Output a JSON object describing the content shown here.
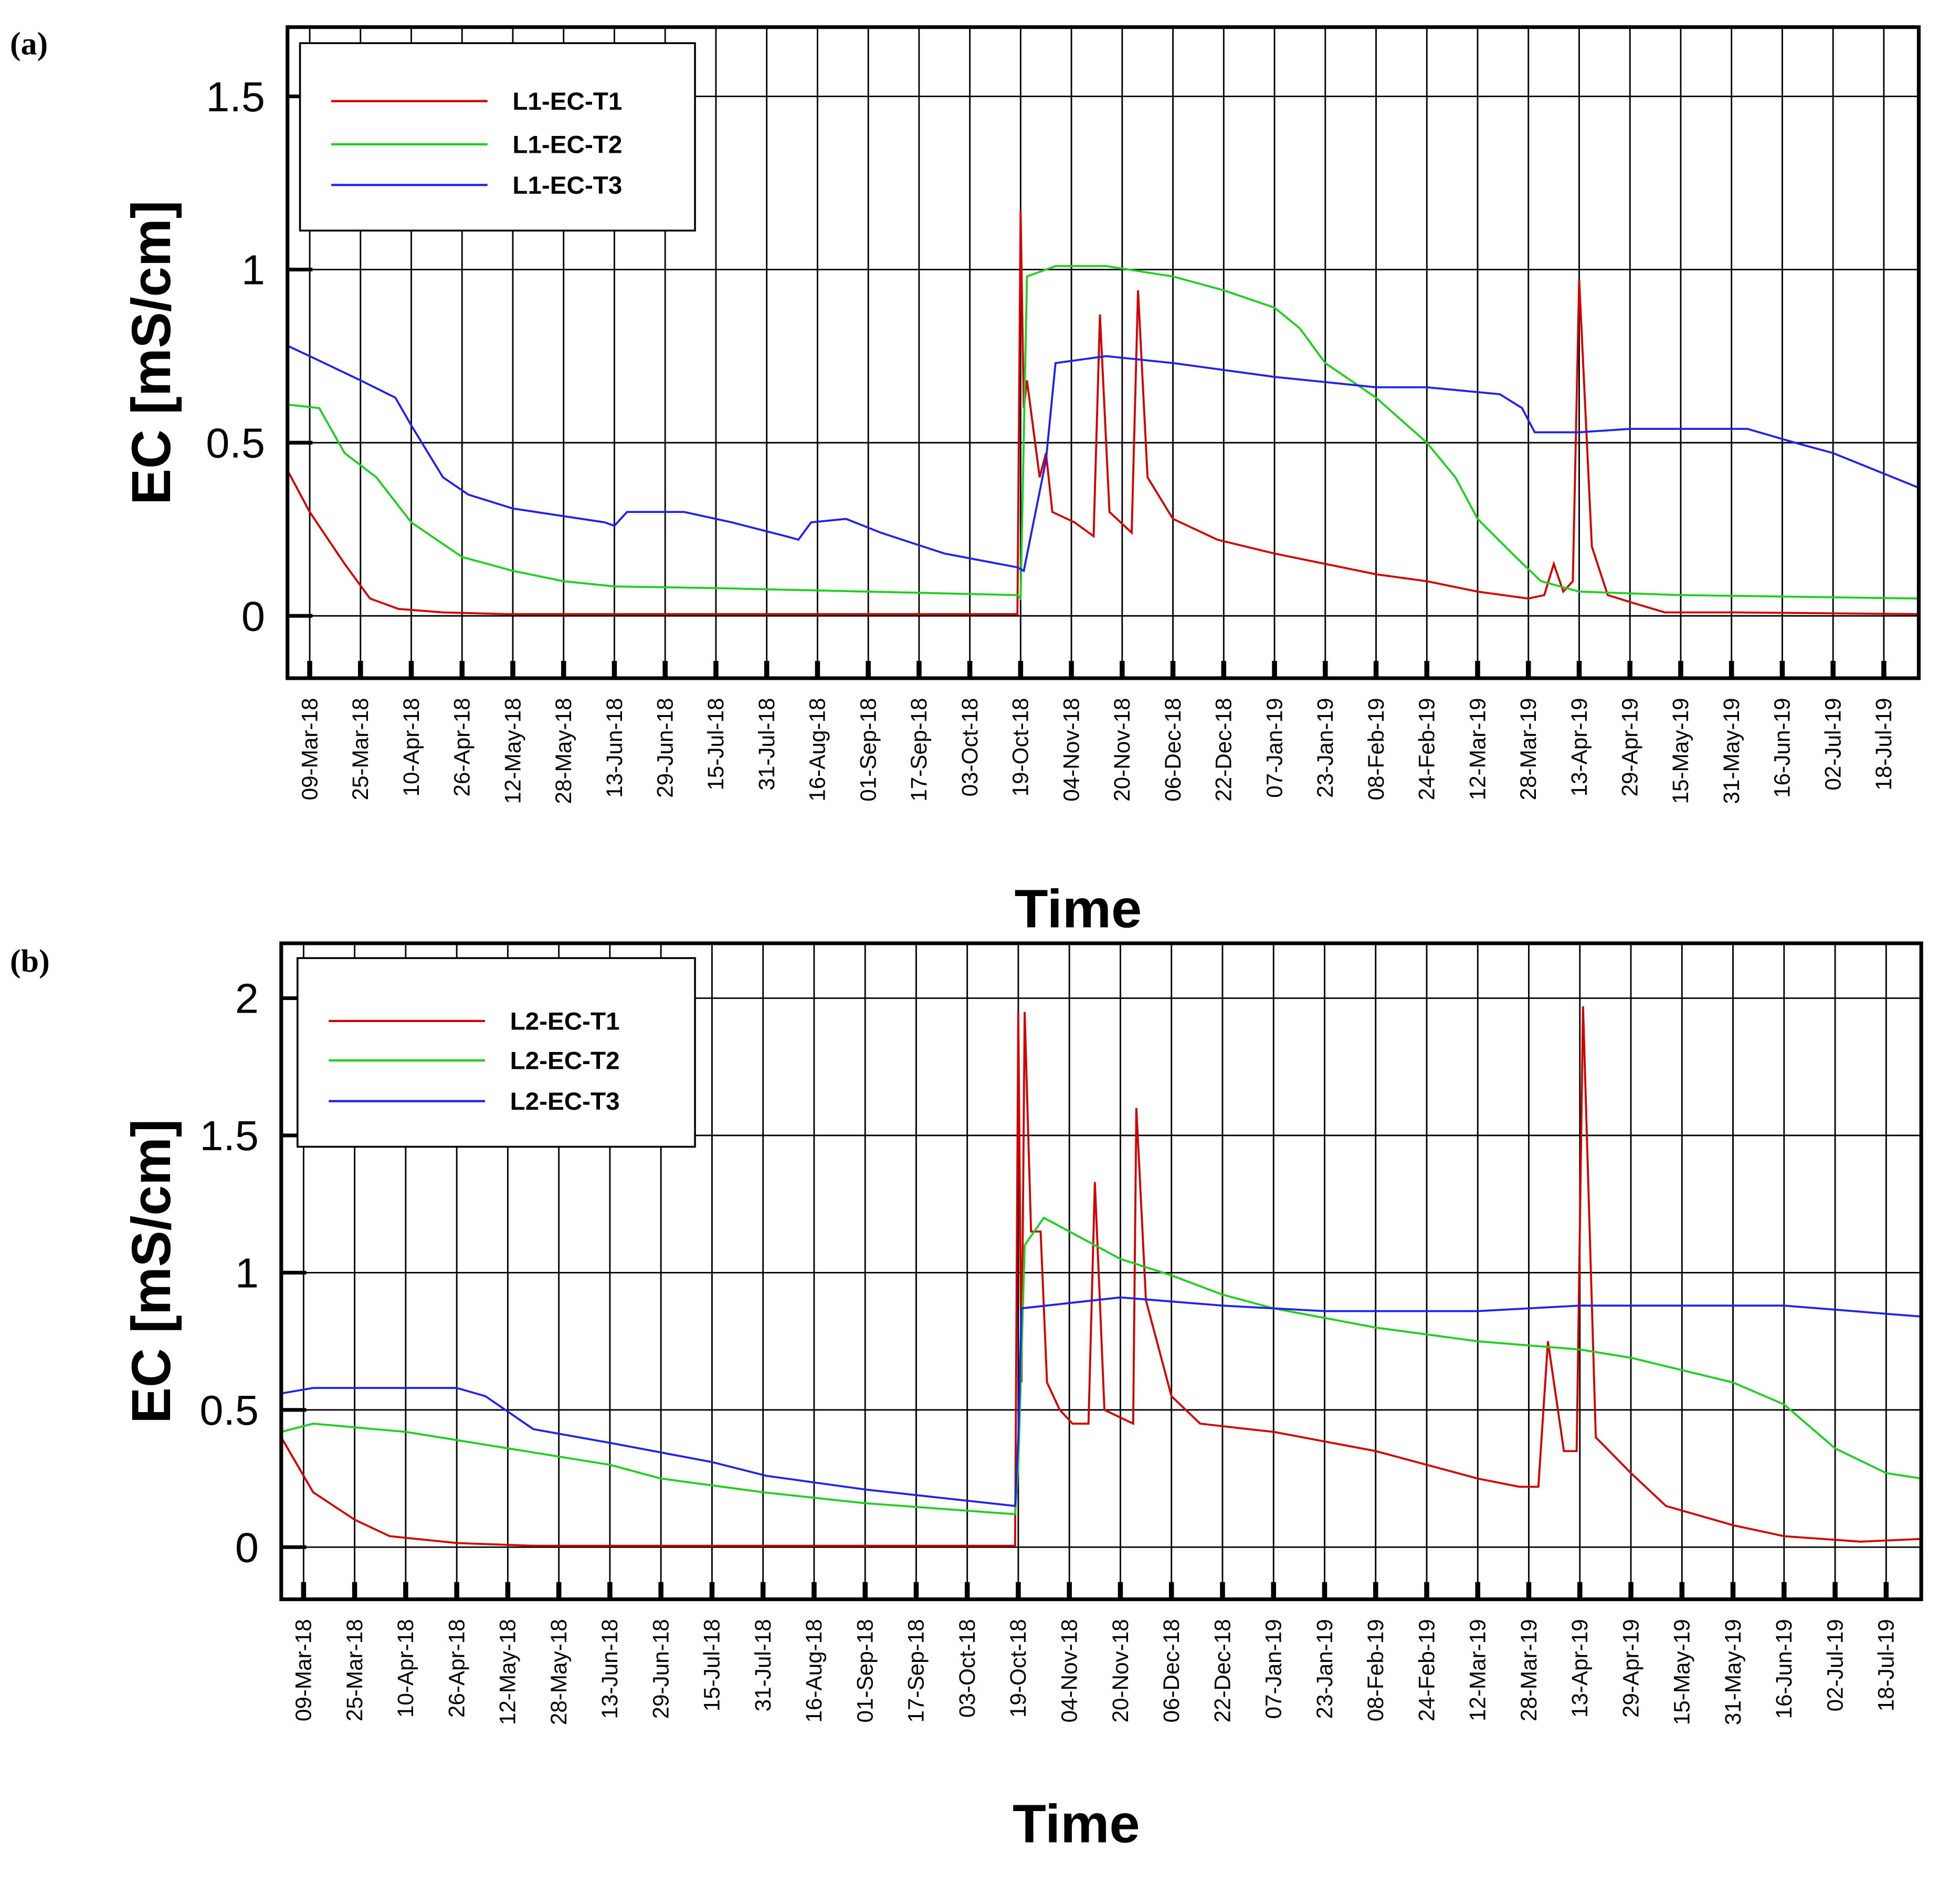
{
  "chart_data": [
    {
      "type": "line",
      "label": "(a)",
      "xlabel": "Time",
      "ylabel": "EC [mS/cm]",
      "xlim": [
        "2018-03-02",
        "2019-07-29"
      ],
      "ylim": [
        -0.18,
        1.7
      ],
      "yticks": [
        0,
        0.5,
        1,
        1.5
      ],
      "grid": true,
      "legend": "upper left",
      "xticks": [
        {
          "value": "2018-03-09",
          "label": "09-Mar-18"
        },
        {
          "value": "2018-03-25",
          "label": "25-Mar-18"
        },
        {
          "value": "2018-04-10",
          "label": "10-Apr-18"
        },
        {
          "value": "2018-04-26",
          "label": "26-Apr-18"
        },
        {
          "value": "2018-05-12",
          "label": "12-May-18"
        },
        {
          "value": "2018-05-28",
          "label": "28-May-18"
        },
        {
          "value": "2018-06-13",
          "label": "13-Jun-18"
        },
        {
          "value": "2018-06-29",
          "label": "29-Jun-18"
        },
        {
          "value": "2018-07-15",
          "label": "15-Jul-18"
        },
        {
          "value": "2018-07-31",
          "label": "31-Jul-18"
        },
        {
          "value": "2018-08-16",
          "label": "16-Aug-18"
        },
        {
          "value": "2018-09-01",
          "label": "01-Sep-18"
        },
        {
          "value": "2018-09-17",
          "label": "17-Sep-18"
        },
        {
          "value": "2018-10-03",
          "label": "03-Oct-18"
        },
        {
          "value": "2018-10-19",
          "label": "19-Oct-18"
        },
        {
          "value": "2018-11-04",
          "label": "04-Nov-18"
        },
        {
          "value": "2018-11-20",
          "label": "20-Nov-18"
        },
        {
          "value": "2018-12-06",
          "label": "06-Dec-18"
        },
        {
          "value": "2018-12-22",
          "label": "22-Dec-18"
        },
        {
          "value": "2019-01-07",
          "label": "07-Jan-19"
        },
        {
          "value": "2019-01-23",
          "label": "23-Jan-19"
        },
        {
          "value": "2019-02-08",
          "label": "08-Feb-19"
        },
        {
          "value": "2019-02-24",
          "label": "24-Feb-19"
        },
        {
          "value": "2019-03-12",
          "label": "12-Mar-19"
        },
        {
          "value": "2019-03-28",
          "label": "28-Mar-19"
        },
        {
          "value": "2019-04-13",
          "label": "13-Apr-19"
        },
        {
          "value": "2019-04-29",
          "label": "29-Apr-19"
        },
        {
          "value": "2019-05-15",
          "label": "15-May-19"
        },
        {
          "value": "2019-05-31",
          "label": "31-May-19"
        },
        {
          "value": "2019-06-16",
          "label": "16-Jun-19"
        },
        {
          "value": "2019-07-02",
          "label": "02-Jul-19"
        },
        {
          "value": "2019-07-18",
          "label": "18-Jul-19"
        }
      ],
      "series": [
        {
          "name": "L1-EC-T1",
          "color": "#d40000",
          "x": [
            "2018-03-02",
            "2018-03-09",
            "2018-03-20",
            "2018-03-28",
            "2018-04-06",
            "2018-04-20",
            "2018-05-10",
            "2018-10-18",
            "2018-10-19",
            "2018-10-20",
            "2018-10-21",
            "2018-10-25",
            "2018-10-27",
            "2018-10-29",
            "2018-11-05",
            "2018-11-11",
            "2018-11-13",
            "2018-11-16",
            "2018-11-23",
            "2018-11-25",
            "2018-11-28",
            "2018-12-06",
            "2018-12-20",
            "2019-01-07",
            "2019-01-23",
            "2019-02-08",
            "2019-02-24",
            "2019-03-12",
            "2019-03-28",
            "2019-04-02",
            "2019-04-05",
            "2019-04-08",
            "2019-04-11",
            "2019-04-13",
            "2019-04-17",
            "2019-04-22",
            "2019-04-29",
            "2019-05-10",
            "2019-05-31",
            "2019-07-29"
          ],
          "values": [
            0.42,
            0.3,
            0.15,
            0.05,
            0.02,
            0.01,
            0.005,
            0.005,
            1.17,
            0.6,
            0.68,
            0.4,
            0.47,
            0.3,
            0.27,
            0.23,
            0.87,
            0.3,
            0.24,
            0.94,
            0.4,
            0.28,
            0.22,
            0.18,
            0.15,
            0.12,
            0.1,
            0.07,
            0.05,
            0.06,
            0.15,
            0.07,
            0.1,
            0.97,
            0.2,
            0.06,
            0.04,
            0.01,
            0.01,
            0.005
          ]
        },
        {
          "name": "L1-EC-T2",
          "color": "#1ed01e",
          "x": [
            "2018-03-02",
            "2018-03-12",
            "2018-03-20",
            "2018-03-30",
            "2018-04-10",
            "2018-04-26",
            "2018-05-12",
            "2018-05-28",
            "2018-06-13",
            "2018-07-15",
            "2018-09-01",
            "2018-10-18",
            "2018-10-19",
            "2018-10-21",
            "2018-10-30",
            "2018-11-15",
            "2018-12-06",
            "2018-12-22",
            "2019-01-07",
            "2019-01-15",
            "2019-01-23",
            "2019-02-08",
            "2019-02-24",
            "2019-03-05",
            "2019-03-12",
            "2019-03-24",
            "2019-04-01",
            "2019-04-13",
            "2019-05-15",
            "2019-07-29"
          ],
          "values": [
            0.61,
            0.6,
            0.47,
            0.4,
            0.27,
            0.17,
            0.13,
            0.1,
            0.085,
            0.08,
            0.07,
            0.06,
            0.05,
            0.98,
            1.01,
            1.01,
            0.98,
            0.94,
            0.89,
            0.83,
            0.73,
            0.63,
            0.5,
            0.4,
            0.28,
            0.17,
            0.1,
            0.07,
            0.06,
            0.05
          ]
        },
        {
          "name": "L1-EC-T3",
          "color": "#2020f0",
          "x": [
            "2018-03-02",
            "2018-03-09",
            "2018-03-25",
            "2018-04-05",
            "2018-04-10",
            "2018-04-20",
            "2018-04-28",
            "2018-05-12",
            "2018-06-10",
            "2018-06-13",
            "2018-06-17",
            "2018-07-05",
            "2018-07-20",
            "2018-08-06",
            "2018-08-10",
            "2018-08-14",
            "2018-08-25",
            "2018-09-05",
            "2018-09-25",
            "2018-10-18",
            "2018-10-20",
            "2018-10-27",
            "2018-10-30",
            "2018-11-15",
            "2018-12-06",
            "2019-01-07",
            "2019-02-08",
            "2019-02-24",
            "2019-03-19",
            "2019-03-26",
            "2019-03-30",
            "2019-04-13",
            "2019-04-29",
            "2019-06-05",
            "2019-06-20",
            "2019-07-02",
            "2019-07-29"
          ],
          "values": [
            0.78,
            0.75,
            0.68,
            0.63,
            0.55,
            0.4,
            0.35,
            0.31,
            0.27,
            0.26,
            0.3,
            0.3,
            0.27,
            0.23,
            0.22,
            0.27,
            0.28,
            0.24,
            0.18,
            0.14,
            0.13,
            0.45,
            0.73,
            0.75,
            0.73,
            0.69,
            0.66,
            0.66,
            0.64,
            0.6,
            0.53,
            0.53,
            0.54,
            0.54,
            0.5,
            0.47,
            0.37
          ]
        }
      ]
    },
    {
      "type": "line",
      "label": "(b)",
      "xlabel": "Time",
      "ylabel": "EC [mS/cm]",
      "xlim": [
        "2018-03-02",
        "2019-07-29"
      ],
      "ylim": [
        -0.19,
        2.2
      ],
      "yticks": [
        0,
        0.5,
        1,
        1.5,
        2
      ],
      "grid": true,
      "legend": "upper left",
      "xticks": [
        {
          "value": "2018-03-09",
          "label": "09-Mar-18"
        },
        {
          "value": "2018-03-25",
          "label": "25-Mar-18"
        },
        {
          "value": "2018-04-10",
          "label": "10-Apr-18"
        },
        {
          "value": "2018-04-26",
          "label": "26-Apr-18"
        },
        {
          "value": "2018-05-12",
          "label": "12-May-18"
        },
        {
          "value": "2018-05-28",
          "label": "28-May-18"
        },
        {
          "value": "2018-06-13",
          "label": "13-Jun-18"
        },
        {
          "value": "2018-06-29",
          "label": "29-Jun-18"
        },
        {
          "value": "2018-07-15",
          "label": "15-Jul-18"
        },
        {
          "value": "2018-07-31",
          "label": "31-Jul-18"
        },
        {
          "value": "2018-08-16",
          "label": "16-Aug-18"
        },
        {
          "value": "2018-09-01",
          "label": "01-Sep-18"
        },
        {
          "value": "2018-09-17",
          "label": "17-Sep-18"
        },
        {
          "value": "2018-10-03",
          "label": "03-Oct-18"
        },
        {
          "value": "2018-10-19",
          "label": "19-Oct-18"
        },
        {
          "value": "2018-11-04",
          "label": "04-Nov-18"
        },
        {
          "value": "2018-11-20",
          "label": "20-Nov-18"
        },
        {
          "value": "2018-12-06",
          "label": "06-Dec-18"
        },
        {
          "value": "2018-12-22",
          "label": "22-Dec-18"
        },
        {
          "value": "2019-01-07",
          "label": "07-Jan-19"
        },
        {
          "value": "2019-01-23",
          "label": "23-Jan-19"
        },
        {
          "value": "2019-02-08",
          "label": "08-Feb-19"
        },
        {
          "value": "2019-02-24",
          "label": "24-Feb-19"
        },
        {
          "value": "2019-03-12",
          "label": "12-Mar-19"
        },
        {
          "value": "2019-03-28",
          "label": "28-Mar-19"
        },
        {
          "value": "2019-04-13",
          "label": "13-Apr-19"
        },
        {
          "value": "2019-04-29",
          "label": "29-Apr-19"
        },
        {
          "value": "2019-05-15",
          "label": "15-May-19"
        },
        {
          "value": "2019-05-31",
          "label": "31-May-19"
        },
        {
          "value": "2019-06-16",
          "label": "16-Jun-19"
        },
        {
          "value": "2019-07-02",
          "label": "02-Jul-19"
        },
        {
          "value": "2019-07-18",
          "label": "18-Jul-19"
        }
      ],
      "series": [
        {
          "name": "L2-EC-T1",
          "color": "#d40000",
          "x": [
            "2018-03-02",
            "2018-03-12",
            "2018-03-25",
            "2018-04-05",
            "2018-04-26",
            "2018-05-20",
            "2018-10-18",
            "2018-10-19",
            "2018-10-20",
            "2018-10-21",
            "2018-10-23",
            "2018-10-26",
            "2018-10-28",
            "2018-11-01",
            "2018-11-05",
            "2018-11-10",
            "2018-11-12",
            "2018-11-15",
            "2018-11-24",
            "2018-11-25",
            "2018-11-28",
            "2018-12-06",
            "2018-12-15",
            "2018-12-30",
            "2019-01-07",
            "2019-02-08",
            "2019-03-12",
            "2019-03-25",
            "2019-03-31",
            "2019-04-03",
            "2019-04-08",
            "2019-04-12",
            "2019-04-14",
            "2019-04-18",
            "2019-04-29",
            "2019-05-10",
            "2019-05-31",
            "2019-06-16",
            "2019-07-10",
            "2019-07-29"
          ],
          "values": [
            0.4,
            0.2,
            0.1,
            0.04,
            0.015,
            0.005,
            0.005,
            1.95,
            0.6,
            1.95,
            1.15,
            1.15,
            0.6,
            0.5,
            0.45,
            0.45,
            1.33,
            0.5,
            0.45,
            1.6,
            0.9,
            0.55,
            0.45,
            0.43,
            0.42,
            0.35,
            0.25,
            0.22,
            0.22,
            0.75,
            0.35,
            0.35,
            1.97,
            0.4,
            0.27,
            0.15,
            0.08,
            0.04,
            0.02,
            0.03
          ]
        },
        {
          "name": "L2-EC-T2",
          "color": "#1ed01e",
          "x": [
            "2018-03-02",
            "2018-03-12",
            "2018-04-10",
            "2018-05-12",
            "2018-06-13",
            "2018-06-29",
            "2018-07-31",
            "2018-09-01",
            "2018-10-18",
            "2018-10-19",
            "2018-10-21",
            "2018-10-27",
            "2018-11-04",
            "2018-11-20",
            "2018-12-06",
            "2018-12-22",
            "2019-01-07",
            "2019-02-08",
            "2019-03-12",
            "2019-04-13",
            "2019-04-29",
            "2019-05-31",
            "2019-06-16",
            "2019-07-02",
            "2019-07-18",
            "2019-07-29"
          ],
          "values": [
            0.42,
            0.45,
            0.42,
            0.36,
            0.3,
            0.25,
            0.2,
            0.16,
            0.12,
            0.3,
            1.1,
            1.2,
            1.15,
            1.05,
            0.99,
            0.92,
            0.87,
            0.8,
            0.75,
            0.72,
            0.69,
            0.6,
            0.52,
            0.36,
            0.27,
            0.25
          ]
        },
        {
          "name": "L2-EC-T3",
          "color": "#2020f0",
          "x": [
            "2018-03-02",
            "2018-03-12",
            "2018-04-26",
            "2018-05-05",
            "2018-05-20",
            "2018-06-13",
            "2018-07-15",
            "2018-08-01",
            "2018-09-01",
            "2018-10-18",
            "2018-10-19",
            "2018-10-20",
            "2018-11-20",
            "2018-12-22",
            "2019-01-23",
            "2019-03-12",
            "2019-04-13",
            "2019-06-16",
            "2019-07-29"
          ],
          "values": [
            0.56,
            0.58,
            0.58,
            0.55,
            0.43,
            0.38,
            0.31,
            0.26,
            0.21,
            0.15,
            0.4,
            0.87,
            0.91,
            0.88,
            0.86,
            0.86,
            0.88,
            0.88,
            0.84
          ]
        }
      ]
    }
  ]
}
